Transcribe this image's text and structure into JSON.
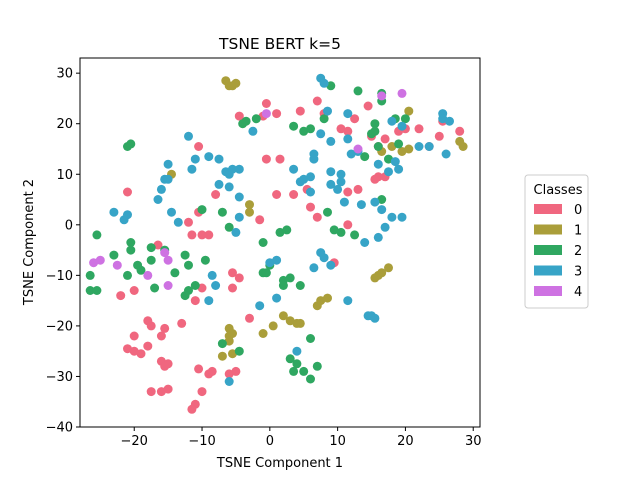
{
  "chart_data": {
    "type": "scatter",
    "title": "TSNE BERT k=5",
    "xlabel": "TSNE Component 1",
    "ylabel": "TSNE Component 2",
    "xlim": [
      -28,
      31
    ],
    "ylim": [
      -40,
      33
    ],
    "xticks": [
      -20,
      -10,
      0,
      10,
      20,
      30
    ],
    "yticks": [
      -40,
      -30,
      -20,
      -10,
      0,
      10,
      20,
      30
    ],
    "grid": false,
    "legend": {
      "title": "Classes",
      "placement": "right-outside"
    },
    "series": [
      {
        "name": "0",
        "color": "#f0677f",
        "points": [
          [
            -21,
            6.5
          ],
          [
            -10.5,
            15.5
          ],
          [
            -8,
            6
          ],
          [
            -12,
            0.5
          ],
          [
            -11.5,
            -2
          ],
          [
            -10,
            -2
          ],
          [
            -9,
            -2
          ],
          [
            -10.5,
            2.5
          ],
          [
            -22,
            -14
          ],
          [
            -20,
            -13
          ],
          [
            -16.5,
            -4
          ],
          [
            -18,
            -19
          ],
          [
            -17.5,
            -20
          ],
          [
            -15.5,
            -20.5
          ],
          [
            -16,
            -22
          ],
          [
            -20,
            -22
          ],
          [
            -19,
            -25.5
          ],
          [
            -20,
            -25
          ],
          [
            -21,
            -24.5
          ],
          [
            -18,
            -24
          ],
          [
            -16,
            -27
          ],
          [
            -15,
            -27.5
          ],
          [
            -15.5,
            -28
          ],
          [
            -13,
            -19.5
          ],
          [
            -11,
            -15
          ],
          [
            -10,
            -12.5
          ],
          [
            -10.5,
            -28.5
          ],
          [
            -9,
            -29.5
          ],
          [
            -8.5,
            -29
          ],
          [
            -6,
            -29.5
          ],
          [
            -5,
            -29
          ],
          [
            -10,
            -33
          ],
          [
            -15,
            -32.5
          ],
          [
            -16,
            -33
          ],
          [
            -17.5,
            -33
          ],
          [
            -11,
            -35.5
          ],
          [
            -11.5,
            -36.5
          ],
          [
            -5.5,
            -12.5
          ],
          [
            -5.5,
            -9.5
          ],
          [
            -4.5,
            -10.5
          ],
          [
            -3,
            -18.5
          ],
          [
            -0.5,
            24
          ],
          [
            -1,
            21.5
          ],
          [
            1,
            22
          ],
          [
            -4.5,
            21.5
          ],
          [
            4.5,
            22.5
          ],
          [
            7,
            24.5
          ],
          [
            8,
            22
          ],
          [
            10.5,
            19
          ],
          [
            11.5,
            18.5
          ],
          [
            12.5,
            21
          ],
          [
            14.5,
            23.5
          ],
          [
            16,
            15.5
          ],
          [
            17,
            17
          ],
          [
            15,
            17.5
          ],
          [
            16,
            9.5
          ],
          [
            17,
            9.5
          ],
          [
            15.5,
            9
          ],
          [
            13,
            7
          ],
          [
            11.5,
            6.5
          ],
          [
            5.5,
            7
          ],
          [
            7,
            1.5
          ],
          [
            6,
            3.5
          ],
          [
            3.5,
            6
          ],
          [
            1,
            6
          ],
          [
            -0.5,
            13
          ],
          [
            1.5,
            13
          ],
          [
            -1.5,
            1
          ],
          [
            11.5,
            0
          ],
          [
            9.5,
            -7.5
          ],
          [
            19,
            18.5
          ],
          [
            20,
            19
          ],
          [
            22,
            19
          ],
          [
            23.5,
            15.5
          ],
          [
            25,
            17.5
          ],
          [
            25.5,
            20.5
          ],
          [
            28,
            18.5
          ]
        ]
      },
      {
        "name": "1",
        "color": "#aa9e3a",
        "points": [
          [
            -6.5,
            28.5
          ],
          [
            -5.5,
            27.5
          ],
          [
            -6,
            27.5
          ],
          [
            -5,
            28
          ],
          [
            -14.5,
            10
          ],
          [
            -3,
            2.5
          ],
          [
            -3,
            4
          ],
          [
            -6,
            -20.5
          ],
          [
            -5.5,
            -21.5
          ],
          [
            -6,
            -22
          ],
          [
            -6,
            -23
          ],
          [
            -5.5,
            -25.5
          ],
          [
            -7,
            -26
          ],
          [
            -1,
            -21.5
          ],
          [
            0.5,
            -20
          ],
          [
            2,
            -18
          ],
          [
            3,
            -19
          ],
          [
            4,
            -19.5
          ],
          [
            4.5,
            -19.5
          ],
          [
            7,
            -16
          ],
          [
            7.5,
            -15
          ],
          [
            8.5,
            -14.5
          ],
          [
            15.5,
            -10.5
          ],
          [
            16,
            -10
          ],
          [
            16.5,
            -9.5
          ],
          [
            17.5,
            -8.5
          ],
          [
            19.5,
            14.5
          ],
          [
            20.5,
            15
          ],
          [
            18,
            15.5
          ],
          [
            16.5,
            14.5
          ],
          [
            20.5,
            22.5
          ],
          [
            28,
            16.5
          ],
          [
            28.5,
            15.5
          ]
        ]
      },
      {
        "name": "2",
        "color": "#2fa761",
        "points": [
          [
            -21,
            15.5
          ],
          [
            -20.5,
            16
          ],
          [
            -25.5,
            -2
          ],
          [
            -26.5,
            -10
          ],
          [
            -26.5,
            -13
          ],
          [
            -25.5,
            -13
          ],
          [
            -23,
            -6
          ],
          [
            -20.5,
            -3.5
          ],
          [
            -20.5,
            -5
          ],
          [
            -21,
            -10
          ],
          [
            -19.5,
            -8
          ],
          [
            -19,
            -9
          ],
          [
            -17.5,
            -4.5
          ],
          [
            -17.5,
            -7
          ],
          [
            -15.5,
            -5
          ],
          [
            -14,
            -9.5
          ],
          [
            -12.5,
            -6
          ],
          [
            -12,
            -8
          ],
          [
            -12.5,
            -14
          ],
          [
            -11,
            -12
          ],
          [
            -12,
            -13
          ],
          [
            -9.5,
            -7
          ],
          [
            -10,
            3
          ],
          [
            -7,
            2.5
          ],
          [
            -6,
            -0.5
          ],
          [
            -4,
            20
          ],
          [
            -3.5,
            20.5
          ],
          [
            -2,
            21
          ],
          [
            -1,
            -3.5
          ],
          [
            -1,
            -9.5
          ],
          [
            -0.5,
            -9.5
          ],
          [
            0,
            -8
          ],
          [
            1.5,
            -1.5
          ],
          [
            2.5,
            -1
          ],
          [
            2,
            -11
          ],
          [
            2,
            -12
          ],
          [
            3,
            -10.5
          ],
          [
            4.5,
            -12
          ],
          [
            6,
            -22.5
          ],
          [
            3,
            -26.5
          ],
          [
            4,
            -27.5
          ],
          [
            3.5,
            -29
          ],
          [
            5,
            -29
          ],
          [
            6,
            -30.5
          ],
          [
            7,
            -28
          ],
          [
            3.5,
            19.5
          ],
          [
            5,
            18.5
          ],
          [
            6,
            19
          ],
          [
            8,
            21
          ],
          [
            9,
            27.5
          ],
          [
            9.5,
            -1
          ],
          [
            8.5,
            2.5
          ],
          [
            10.5,
            -1.5
          ],
          [
            13,
            26.5
          ],
          [
            16.5,
            26
          ],
          [
            16.5,
            24.5
          ],
          [
            15.5,
            20
          ],
          [
            14,
            13.5
          ],
          [
            15,
            18
          ],
          [
            15.5,
            18.5
          ],
          [
            16,
            15.5
          ],
          [
            17.5,
            13
          ],
          [
            18.5,
            21
          ],
          [
            19,
            16
          ],
          [
            20,
            21
          ],
          [
            16.5,
            5
          ],
          [
            12.5,
            -2
          ],
          [
            -7,
            -23.5
          ],
          [
            -4.5,
            -25
          ],
          [
            -17,
            -12.5
          ]
        ]
      },
      {
        "name": "3",
        "color": "#37a4c7",
        "points": [
          [
            -23,
            2.5
          ],
          [
            -21.5,
            1
          ],
          [
            -21,
            2
          ],
          [
            -15.5,
            9
          ],
          [
            -15,
            9
          ],
          [
            -15,
            12
          ],
          [
            -16.5,
            5
          ],
          [
            -16,
            7
          ],
          [
            -14.5,
            2.5
          ],
          [
            -13.5,
            0.5
          ],
          [
            -12,
            17.5
          ],
          [
            -11.5,
            11
          ],
          [
            -11,
            13
          ],
          [
            -9,
            13.5
          ],
          [
            -7.5,
            13
          ],
          [
            -6.5,
            10.5
          ],
          [
            -6,
            10
          ],
          [
            -6,
            7.5
          ],
          [
            -7.5,
            8
          ],
          [
            -5.5,
            11
          ],
          [
            -4.5,
            11
          ],
          [
            -4.5,
            5.5
          ],
          [
            -2.5,
            18.5
          ],
          [
            -8.5,
            -10
          ],
          [
            -8,
            -12
          ],
          [
            -9,
            -15
          ],
          [
            -6,
            -31
          ],
          [
            -5,
            -1.5
          ],
          [
            -4.5,
            1.5
          ],
          [
            -1.5,
            -16
          ],
          [
            0,
            -7.5
          ],
          [
            1,
            -14.5
          ],
          [
            1,
            -7
          ],
          [
            3.5,
            11
          ],
          [
            4.5,
            8.5
          ],
          [
            5,
            9
          ],
          [
            6,
            9.5
          ],
          [
            6.5,
            13
          ],
          [
            6.5,
            14
          ],
          [
            6,
            6.5
          ],
          [
            7.5,
            29
          ],
          [
            8,
            28
          ],
          [
            7.5,
            18
          ],
          [
            9,
            16.5
          ],
          [
            8.5,
            22.5
          ],
          [
            9,
            8
          ],
          [
            9,
            10.5
          ],
          [
            10,
            7
          ],
          [
            10.5,
            10
          ],
          [
            10.5,
            8.5
          ],
          [
            11,
            4.5
          ],
          [
            11.5,
            17
          ],
          [
            11.5,
            22
          ],
          [
            12,
            14
          ],
          [
            13,
            14.5
          ],
          [
            13.5,
            4
          ],
          [
            15.5,
            4.5
          ],
          [
            16.5,
            3
          ],
          [
            14,
            -3.5
          ],
          [
            16,
            -2.5
          ],
          [
            17,
            -0.5
          ],
          [
            18,
            1.5
          ],
          [
            19.5,
            1.5
          ],
          [
            17.5,
            10.5
          ],
          [
            19,
            11
          ],
          [
            18.5,
            12.5
          ],
          [
            16,
            12
          ],
          [
            18,
            20.5
          ],
          [
            19.5,
            19.5
          ],
          [
            22,
            15.5
          ],
          [
            23.5,
            15.5
          ],
          [
            25.5,
            22
          ],
          [
            25.5,
            21
          ],
          [
            26.5,
            20.5
          ],
          [
            26,
            14
          ],
          [
            14.5,
            -18
          ],
          [
            15,
            -18
          ],
          [
            15.5,
            -18.5
          ],
          [
            11.5,
            -15
          ],
          [
            7.5,
            -5.5
          ],
          [
            8,
            -6.5
          ],
          [
            9,
            -8
          ],
          [
            6.5,
            -8.5
          ],
          [
            4,
            -25
          ]
        ]
      },
      {
        "name": "4",
        "color": "#ce72e2",
        "points": [
          [
            -26,
            -7.5
          ],
          [
            -25,
            -7
          ],
          [
            -22.5,
            -8
          ],
          [
            -18,
            -10
          ],
          [
            -15.5,
            -5.5
          ],
          [
            -15,
            -7
          ],
          [
            -15,
            -12
          ],
          [
            -0.5,
            22
          ],
          [
            13,
            15
          ],
          [
            16.5,
            25.5
          ],
          [
            19.5,
            26
          ]
        ]
      }
    ]
  }
}
